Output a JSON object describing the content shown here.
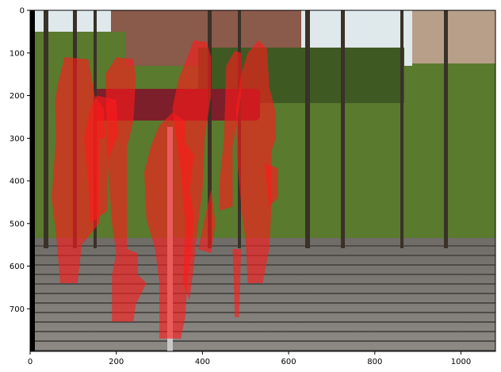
{
  "figure": {
    "kind": "image-with-segmentation-overlay",
    "overlay_color": "#ff1a1a",
    "scene_colors": {
      "sky": "#dfe8ea",
      "foliage": "#5a7a2e",
      "foliage_dark": "#2f4519",
      "building": "#8a5a4a",
      "banner": "#7c1f2a",
      "stairs": "#7d7a76",
      "stairs_dark": "#4e4c49",
      "trunk": "#3a3128"
    }
  },
  "axes": {
    "x_ticks": [
      "0",
      "200",
      "400",
      "600",
      "800",
      "1000"
    ],
    "y_ticks": [
      "0",
      "100",
      "200",
      "300",
      "400",
      "500",
      "600",
      "700"
    ]
  },
  "chart_data": {
    "type": "image",
    "image_width": 1080,
    "image_height": 800,
    "xlim": [
      0,
      1080
    ],
    "ylim": [
      800,
      0
    ],
    "x_ticks": [
      0,
      200,
      400,
      600,
      800,
      1000
    ],
    "y_ticks": [
      0,
      100,
      200,
      300,
      400,
      500,
      600,
      700
    ],
    "grid": false,
    "masks": [
      {
        "polygon": [
          [
            65,
            170
          ],
          [
            80,
            110
          ],
          [
            135,
            115
          ],
          [
            150,
            200
          ],
          [
            170,
            230
          ],
          [
            175,
            300
          ],
          [
            160,
            300
          ],
          [
            160,
            500
          ],
          [
            120,
            550
          ],
          [
            110,
            640
          ],
          [
            70,
            640
          ],
          [
            60,
            520
          ],
          [
            50,
            440
          ],
          [
            60,
            300
          ],
          [
            58,
            210
          ]
        ]
      },
      {
        "polygon": [
          [
            175,
            150
          ],
          [
            200,
            110
          ],
          [
            240,
            115
          ],
          [
            245,
            160
          ],
          [
            240,
            260
          ],
          [
            225,
            320
          ],
          [
            225,
            560
          ],
          [
            250,
            570
          ],
          [
            250,
            620
          ],
          [
            270,
            640
          ],
          [
            245,
            690
          ],
          [
            240,
            730
          ],
          [
            190,
            730
          ],
          [
            190,
            620
          ],
          [
            200,
            570
          ],
          [
            190,
            500
          ],
          [
            180,
            360
          ]
        ]
      },
      {
        "polygon": [
          [
            155,
            200
          ],
          [
            200,
            210
          ],
          [
            205,
            290
          ],
          [
            180,
            350
          ],
          [
            180,
            470
          ],
          [
            140,
            500
          ],
          [
            135,
            400
          ],
          [
            125,
            300
          ],
          [
            140,
            230
          ]
        ]
      },
      {
        "polygon": [
          [
            280,
            320
          ],
          [
            300,
            270
          ],
          [
            330,
            240
          ],
          [
            360,
            260
          ],
          [
            360,
            310
          ],
          [
            380,
            340
          ],
          [
            370,
            420
          ],
          [
            380,
            480
          ],
          [
            375,
            560
          ],
          [
            365,
            640
          ],
          [
            360,
            720
          ],
          [
            350,
            770
          ],
          [
            300,
            770
          ],
          [
            300,
            640
          ],
          [
            290,
            560
          ],
          [
            270,
            490
          ],
          [
            265,
            380
          ]
        ]
      },
      {
        "polygon": [
          [
            390,
            560
          ],
          [
            420,
            420
          ],
          [
            430,
            500
          ],
          [
            420,
            570
          ]
        ]
      },
      {
        "polygon": [
          [
            365,
            110
          ],
          [
            380,
            70
          ],
          [
            410,
            75
          ],
          [
            420,
            110
          ],
          [
            420,
            200
          ],
          [
            405,
            300
          ],
          [
            400,
            420
          ],
          [
            390,
            500
          ],
          [
            380,
            600
          ],
          [
            370,
            680
          ],
          [
            355,
            640
          ],
          [
            360,
            500
          ],
          [
            350,
            380
          ],
          [
            330,
            230
          ],
          [
            345,
            160
          ]
        ]
      },
      {
        "polygon": [
          [
            455,
            130
          ],
          [
            475,
            95
          ],
          [
            490,
            100
          ],
          [
            490,
            200
          ],
          [
            470,
            320
          ],
          [
            470,
            460
          ],
          [
            440,
            470
          ],
          [
            440,
            400
          ],
          [
            450,
            300
          ]
        ]
      },
      {
        "polygon": [
          [
            470,
            560
          ],
          [
            490,
            560
          ],
          [
            485,
            720
          ],
          [
            475,
            720
          ]
        ]
      },
      {
        "polygon": [
          [
            490,
            150
          ],
          [
            505,
            100
          ],
          [
            530,
            70
          ],
          [
            550,
            90
          ],
          [
            555,
            180
          ],
          [
            570,
            240
          ],
          [
            570,
            300
          ],
          [
            560,
            330
          ],
          [
            560,
            460
          ],
          [
            555,
            560
          ],
          [
            540,
            640
          ],
          [
            505,
            640
          ],
          [
            500,
            540
          ],
          [
            490,
            460
          ],
          [
            480,
            340
          ],
          [
            478,
            230
          ]
        ]
      },
      {
        "polygon": [
          [
            545,
            360
          ],
          [
            575,
            370
          ],
          [
            575,
            440
          ],
          [
            555,
            460
          ]
        ]
      }
    ]
  }
}
